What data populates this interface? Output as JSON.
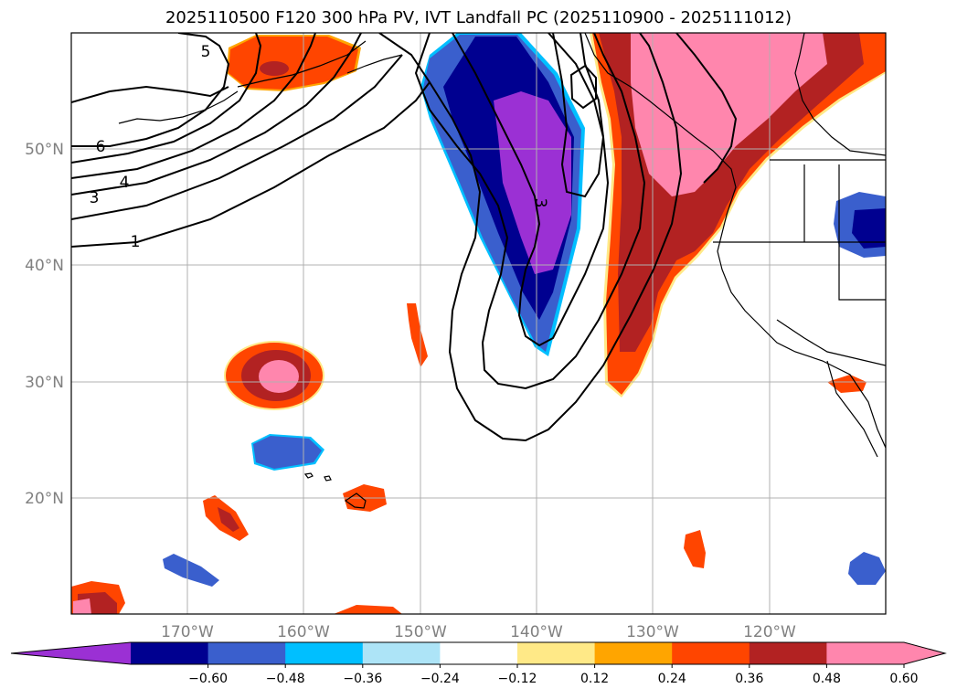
{
  "title": "2025110500 F120 300 hPa PV, IVT Landfall PC (2025110900 - 2025111012)",
  "axes": {
    "lat_labels": [
      "50°N",
      "40°N",
      "30°N",
      "20°N"
    ],
    "lon_labels": [
      "170°W",
      "160°W",
      "150°W",
      "140°W",
      "130°W",
      "120°W"
    ]
  },
  "contour_labels": [
    "5",
    "6",
    "4",
    "3",
    "1",
    "3"
  ],
  "colorbar": {
    "tick_labels": [
      "−0.60",
      "−0.48",
      "−0.36",
      "−0.24",
      "−0.12",
      "0.12",
      "0.24",
      "0.36",
      "0.48",
      "0.60"
    ],
    "colors": [
      "#9b30d4",
      "#000090",
      "#3a5fcd",
      "#00bfff",
      "#ade4f7",
      "#ffffff",
      "#ffe987",
      "#ffa500",
      "#ff4500",
      "#b22222",
      "#ff86ad",
      "#ff86ad"
    ]
  },
  "colors": {
    "neg_purple": "#9b30d4",
    "neg_navy": "#000090",
    "neg_blue": "#3a5fcd",
    "neg_cyan": "#00bfff",
    "pos_yellow": "#ffe987",
    "pos_orange": "#ff4500",
    "pos_red": "#b22222",
    "pos_pink": "#ff86ad"
  }
}
